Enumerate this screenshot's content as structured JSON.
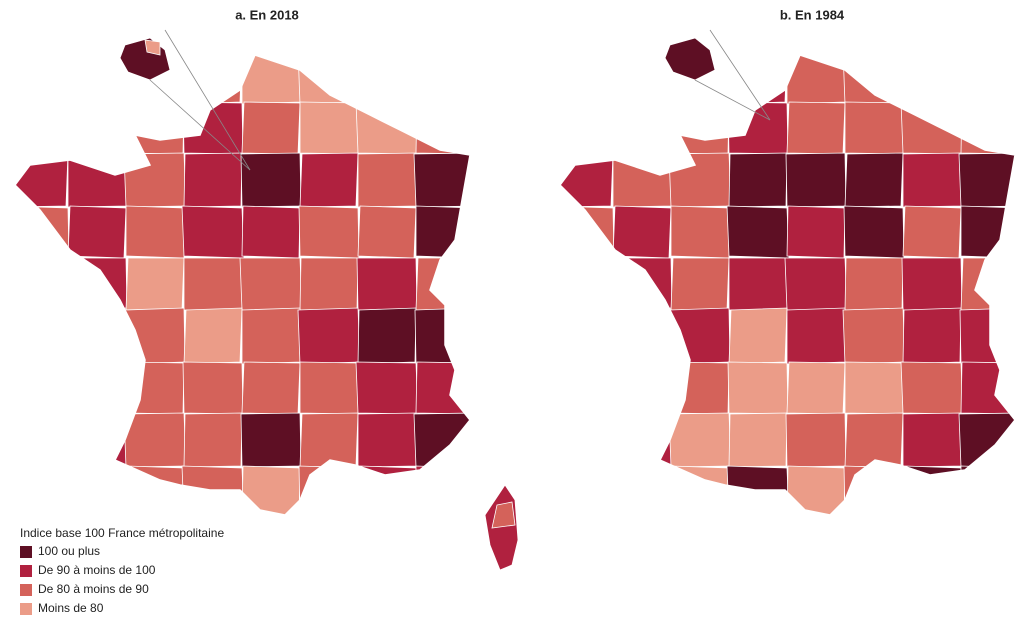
{
  "map_a": {
    "title": "a. En 2018"
  },
  "map_b": {
    "title": "b. En 1984"
  },
  "legend": {
    "title": "Indice base 100 France métropolitaine",
    "items": [
      {
        "label": "100 ou plus",
        "color": "#5e0f24"
      },
      {
        "label": "De 90 à moins de 100",
        "color": "#b0213f"
      },
      {
        "label": "De 80 à moins de 90",
        "color": "#d4625a"
      },
      {
        "label": "Moins de 80",
        "color": "#eb9c88"
      }
    ]
  }
}
